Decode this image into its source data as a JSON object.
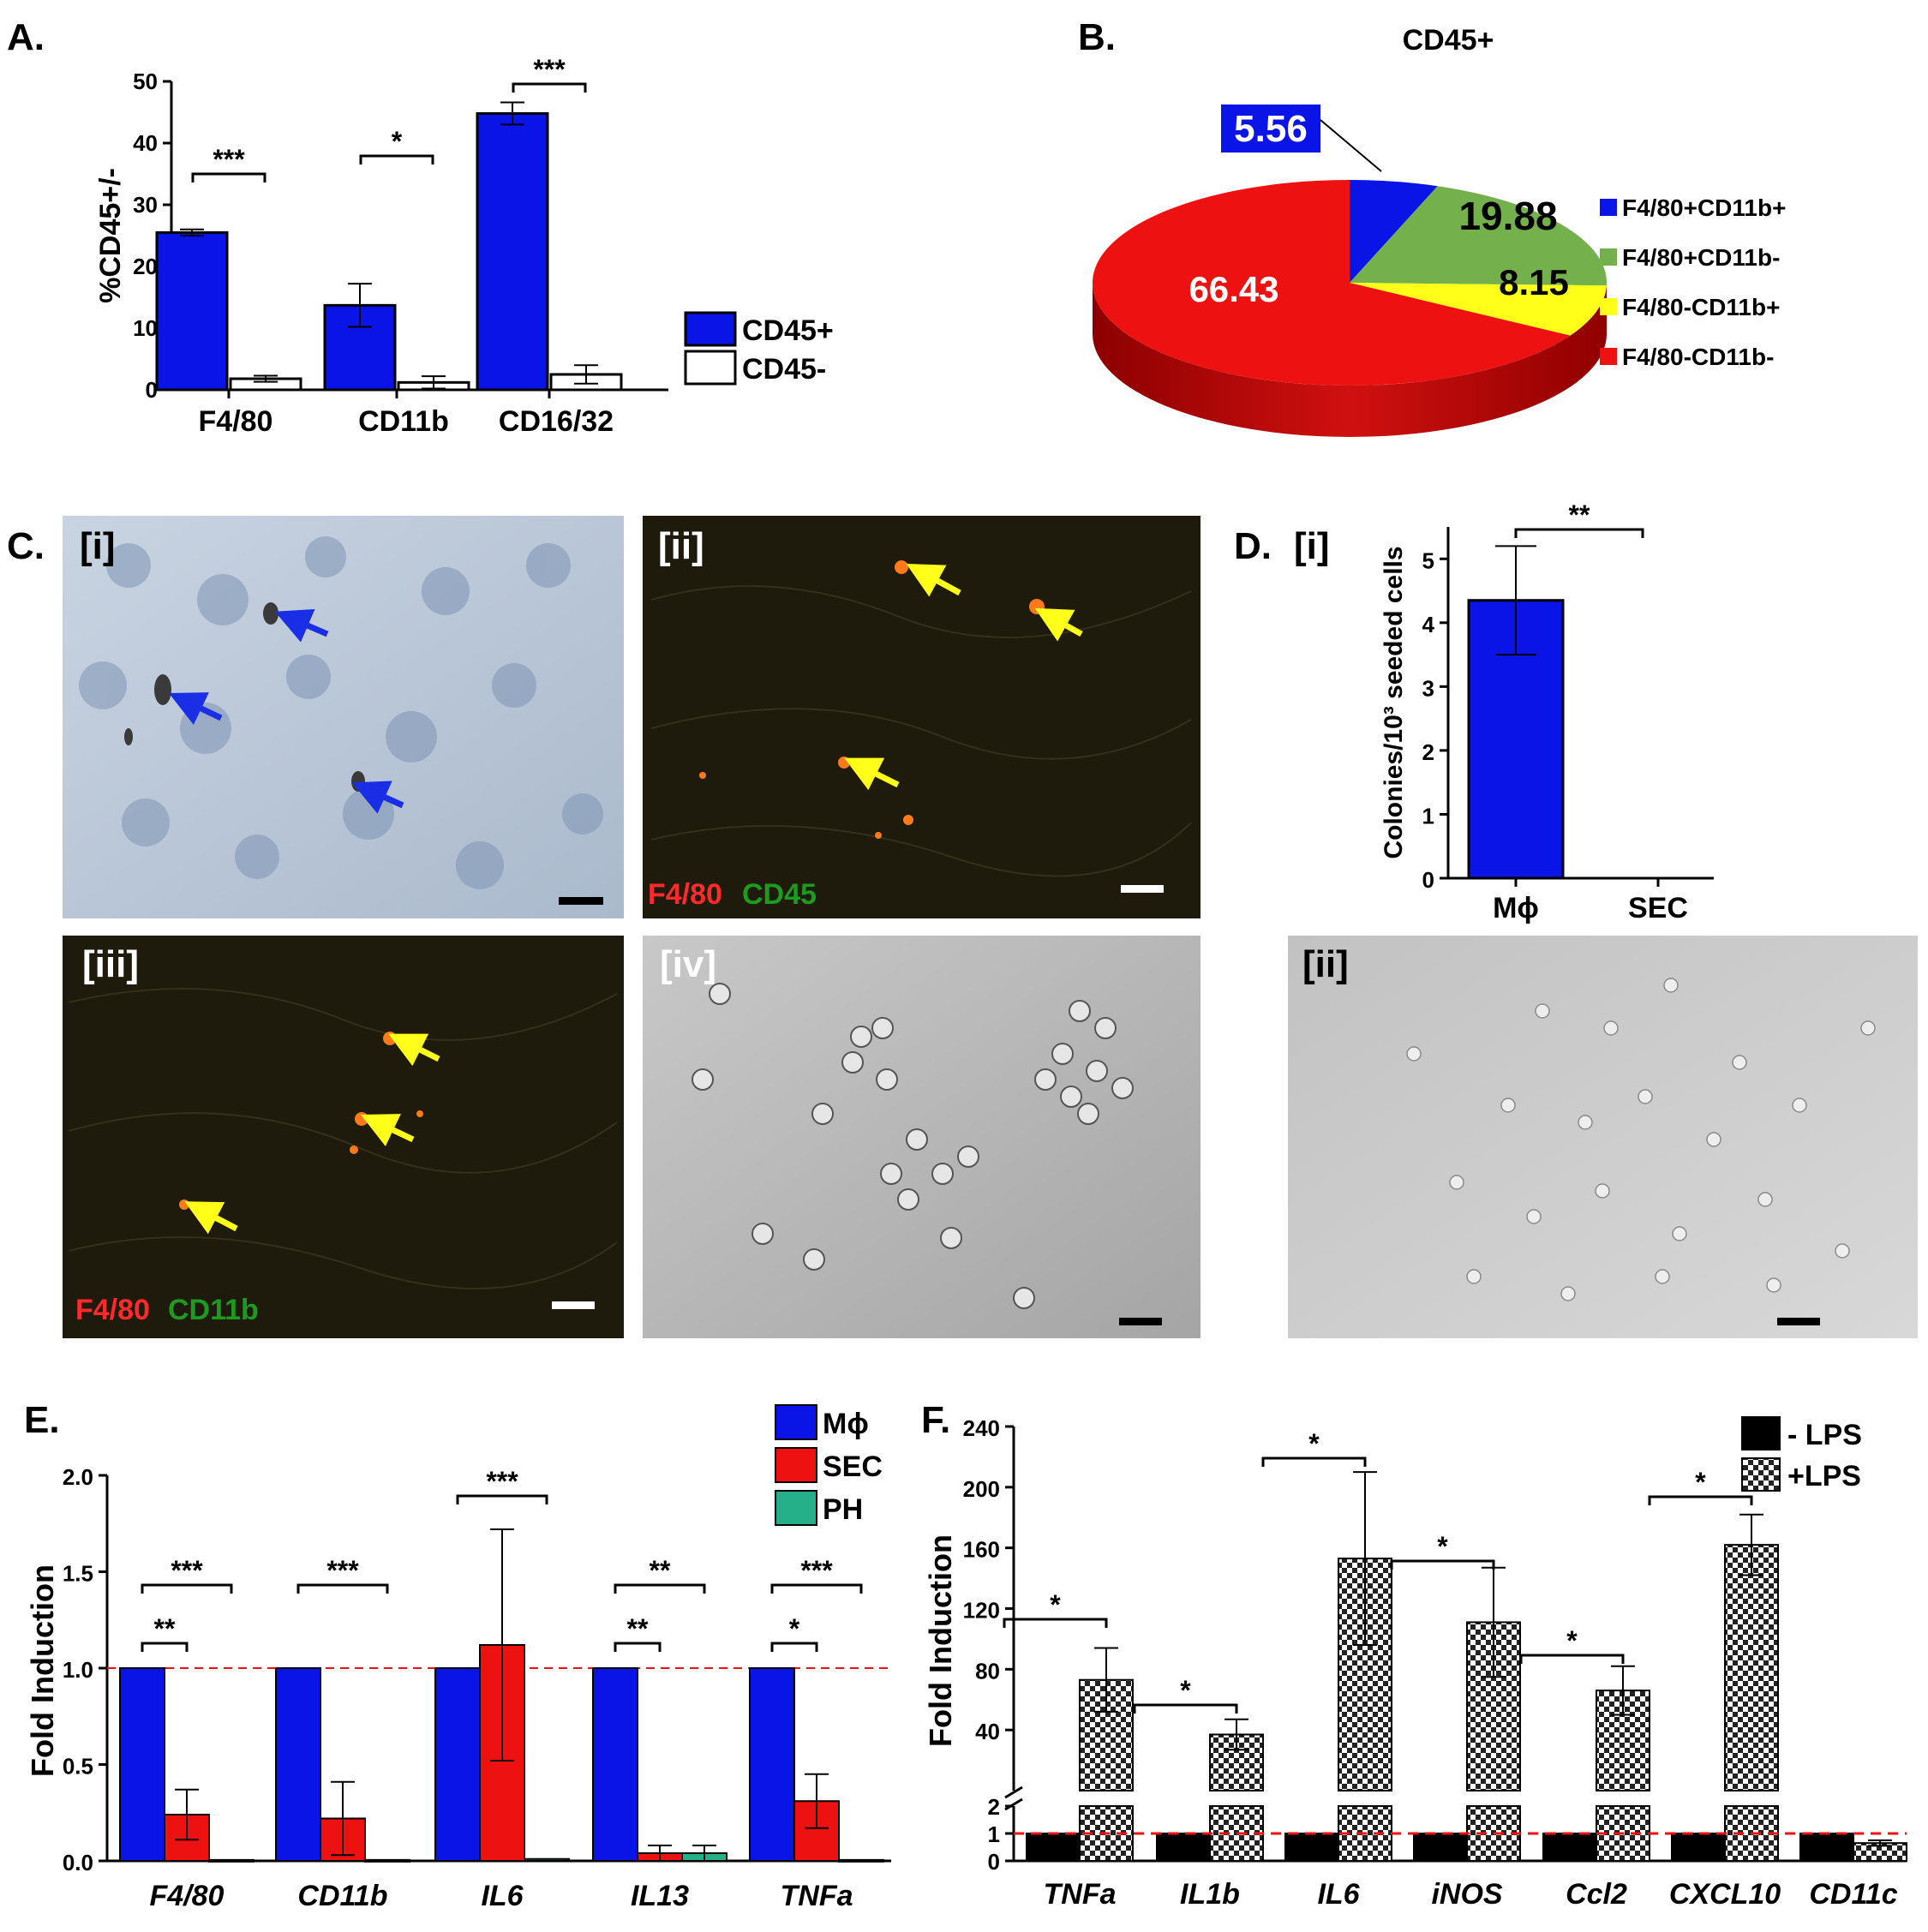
{
  "panels": {
    "A": "A.",
    "B": "B.",
    "C": "C.",
    "D": "D.",
    "E": "E.",
    "F": "F."
  },
  "micro": {
    "c_i": "[i]",
    "c_ii": "[ii]",
    "c_iii": "[iii]",
    "c_iv": "[iv]",
    "d_i": "[i]",
    "d_ii": "[ii]",
    "c_ii_red": "F4/80",
    "c_ii_green": "CD45",
    "c_iii_red": "F4/80",
    "c_iii_green": "CD11b"
  },
  "colors": {
    "blue": "#0a14e6",
    "red": "#ee1111",
    "green": "#74b04c",
    "yellow": "#ffff1a",
    "teal": "#26b089",
    "fluor_red": "#ff2a2a",
    "fluor_green": "#1e9a1e"
  },
  "chart_data": [
    {
      "id": "A",
      "type": "bar",
      "categories": [
        "F4/80",
        "CD11b",
        "CD16/32"
      ],
      "ylabel": "%CD45+/-",
      "ylim": [
        0,
        50
      ],
      "yticks": [
        0,
        10,
        20,
        30,
        40,
        50
      ],
      "series": [
        {
          "name": "CD45+",
          "values": [
            25.5,
            13.7,
            44.8
          ],
          "errors": [
            0.5,
            3.5,
            1.8
          ]
        },
        {
          "name": "CD45-",
          "values": [
            1.8,
            1.2,
            2.5
          ],
          "errors": [
            0.5,
            1.0,
            1.5
          ]
        }
      ],
      "annotations": [
        "***",
        "*",
        "***"
      ]
    },
    {
      "id": "B",
      "type": "pie",
      "title": "CD45+",
      "slices": [
        {
          "label": "F4/80+CD11b+",
          "value": 5.56
        },
        {
          "label": "F4/80+CD11b-",
          "value": 19.88
        },
        {
          "label": "F4/80-CD11b+",
          "value": 8.15
        },
        {
          "label": "F4/80-CD11b-",
          "value": 66.43
        }
      ],
      "value_labels": [
        "5.56",
        "19.88",
        "8.15",
        "66.43"
      ]
    },
    {
      "id": "D",
      "type": "bar",
      "categories": [
        "Mϕ",
        "SEC"
      ],
      "ylabel": "Colonies/10³ seeded cells",
      "ylim": [
        0,
        5.5
      ],
      "yticks": [
        0,
        1,
        2,
        3,
        4,
        5
      ],
      "values": [
        4.35,
        0
      ],
      "errors": [
        0.85,
        0
      ],
      "annotations": [
        "**"
      ]
    },
    {
      "id": "E",
      "type": "bar",
      "categories": [
        "F4/80",
        "CD11b",
        "IL6",
        "IL13",
        "TNFa"
      ],
      "ylabel": "Fold Induction",
      "ylim": [
        0,
        2.0
      ],
      "yticks": [
        0.0,
        0.5,
        1.0,
        1.5,
        2.0
      ],
      "ytick_labels": [
        "0.0",
        "0.5",
        "1.0",
        "1.5",
        "2.0"
      ],
      "reference_line": 1.0,
      "series": [
        {
          "name": "Mϕ",
          "values": [
            1.0,
            1.0,
            1.0,
            1.0,
            1.0
          ],
          "errors": [
            0,
            0,
            0,
            0,
            0
          ]
        },
        {
          "name": "SEC",
          "values": [
            0.24,
            0.22,
            1.12,
            0.04,
            0.31
          ],
          "errors": [
            0.13,
            0.19,
            0.6,
            0.04,
            0.14
          ]
        },
        {
          "name": "PH",
          "values": [
            0.005,
            0.005,
            0.01,
            0.04,
            0.005
          ],
          "errors": [
            0,
            0,
            0,
            0.04,
            0
          ]
        }
      ],
      "annotations": [
        {
          "group": 0,
          "from": 0,
          "to": 2,
          "text": "***"
        },
        {
          "group": 0,
          "from": 0,
          "to": 1,
          "text": "**"
        },
        {
          "group": 1,
          "from": 0,
          "to": 2,
          "text": "***"
        },
        {
          "group": 2,
          "from": 0,
          "to": 2,
          "text": "***"
        },
        {
          "group": 3,
          "from": 0,
          "to": 2,
          "text": "**"
        },
        {
          "group": 3,
          "from": 0,
          "to": 1,
          "text": "**"
        },
        {
          "group": 4,
          "from": 0,
          "to": 2,
          "text": "***"
        },
        {
          "group": 4,
          "from": 0,
          "to": 1,
          "text": "*"
        }
      ]
    },
    {
      "id": "F",
      "type": "bar",
      "categories": [
        "TNFa",
        "IL1b",
        "IL6",
        "iNOS",
        "Ccl2",
        "CXCL10",
        "CD11c"
      ],
      "ylabel": "Fold Induction",
      "yticks_upper": [
        40,
        80,
        120,
        160,
        200,
        240
      ],
      "yticks_lower": [
        0,
        1,
        2
      ],
      "broken_axis": true,
      "reference_line": 1,
      "series": [
        {
          "name": "- LPS",
          "values": [
            1,
            1,
            1,
            1,
            1,
            1,
            1
          ],
          "errors": [
            0,
            0,
            0,
            0,
            0,
            0,
            0
          ]
        },
        {
          "name": "+LPS",
          "values": [
            73,
            37,
            153,
            111,
            66,
            162,
            0.65
          ],
          "errors": [
            21,
            10,
            57,
            36,
            16,
            20,
            0.1
          ]
        }
      ],
      "annotations": [
        "*",
        "*",
        "*",
        "*",
        "*",
        "*"
      ]
    }
  ]
}
